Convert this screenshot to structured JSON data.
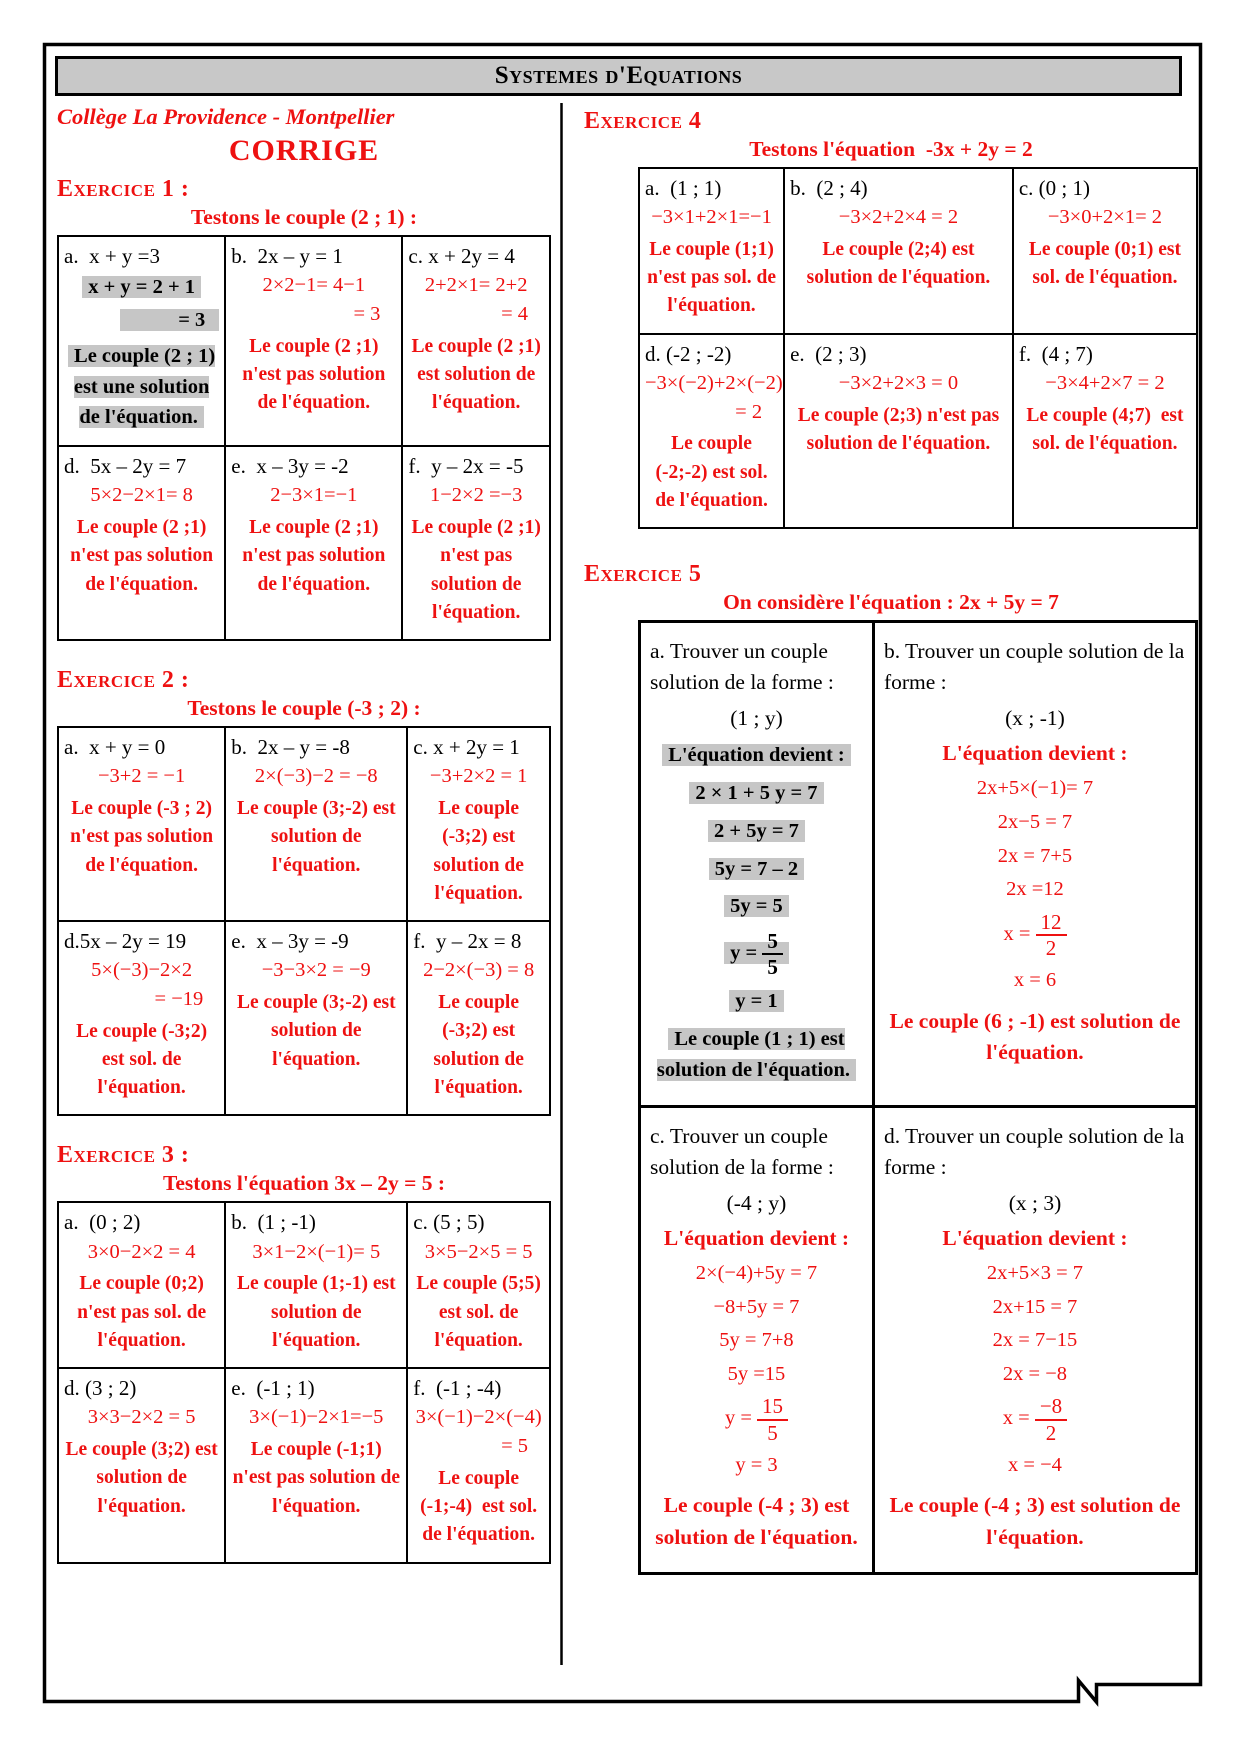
{
  "header": {
    "title": "Systemes d'Equations"
  },
  "left": {
    "school": "Collège La Providence - Montpellier",
    "corrige": "CORRIGE",
    "ex1": {
      "title": "Exercice 1 :",
      "subtitle": "Testons le couple (2 ; 1) :",
      "cells": [
        {
          "id": "a",
          "lines": [
            {
              "t": "a.  x + y =3",
              "c": "k"
            },
            {
              "t": "x + y = 2 + 1",
              "c": "hl"
            },
            {
              "t": "= 3",
              "c": "hlr"
            },
            {
              "t": "Le couple (2 ; 1) est une solution de l'équation.",
              "c": "hl cc"
            }
          ]
        },
        {
          "id": "b",
          "lines": [
            {
              "t": "b.  2x – y = 1",
              "c": "k"
            },
            {
              "t": "2×2−1= 4−1",
              "c": "m"
            },
            {
              "t": "= 3",
              "c": "mr"
            },
            {
              "t": "Le couple (2 ;1) n'est pas solution de l'équation.",
              "c": "mc"
            }
          ]
        },
        {
          "id": "c",
          "lines": [
            {
              "t": "c. x + 2y = 4",
              "c": "k"
            },
            {
              "t": "2+2×1= 2+2",
              "c": "m"
            },
            {
              "t": "= 4",
              "c": "mr"
            },
            {
              "t": "Le couple (2 ;1) est solution de l'équation.",
              "c": "mc"
            }
          ]
        },
        {
          "id": "d",
          "lines": [
            {
              "t": "d.  5x – 2y = 7",
              "c": "k"
            },
            {
              "t": "5×2−2×1= 8",
              "c": "m"
            },
            {
              "t": "Le couple (2 ;1) n'est pas solution de l'équation.",
              "c": "mc"
            }
          ]
        },
        {
          "id": "e",
          "lines": [
            {
              "t": "e.  x – 3y = -2",
              "c": "k"
            },
            {
              "t": "2−3×1=−1",
              "c": "m"
            },
            {
              "t": "Le couple (2 ;1) n'est pas solution de l'équation.",
              "c": "mc"
            }
          ]
        },
        {
          "id": "f",
          "lines": [
            {
              "t": "f.  y – 2x = -5",
              "c": "k"
            },
            {
              "t": "1−2×2 =−3",
              "c": "m"
            },
            {
              "t": "Le couple (2 ;1) n'est pas solution de l'équation.",
              "c": "mc"
            }
          ]
        }
      ]
    },
    "ex2": {
      "title": "Exercice 2 :",
      "subtitle": "Testons le couple  (-3 ; 2) :",
      "cells": [
        {
          "id": "a",
          "lines": [
            {
              "t": "a.  x + y = 0",
              "c": "k"
            },
            {
              "t": "−3+2 = −1",
              "c": "m"
            },
            {
              "t": "Le couple (-3 ; 2) n'est pas solution de l'équation.",
              "c": "mc"
            }
          ]
        },
        {
          "id": "b",
          "lines": [
            {
              "t": "b.  2x – y = -8",
              "c": "k"
            },
            {
              "t": "2×(−3)−2 = −8",
              "c": "m"
            },
            {
              "t": "Le couple (3;-2) est solution de l'équation.",
              "c": "mc"
            }
          ]
        },
        {
          "id": "c",
          "lines": [
            {
              "t": "c. x + 2y = 1",
              "c": "k"
            },
            {
              "t": "−3+2×2 = 1",
              "c": "m"
            },
            {
              "t": "Le couple (-3;2) est solution de l'équation.",
              "c": "mc"
            }
          ]
        },
        {
          "id": "d",
          "lines": [
            {
              "t": "d.5x – 2y = 19",
              "c": "k"
            },
            {
              "t": "5×(−3)−2×2",
              "c": "m"
            },
            {
              "t": "= −19",
              "c": "mr"
            },
            {
              "t": "Le couple (-3;2) est sol. de l'équation.",
              "c": "mc"
            }
          ]
        },
        {
          "id": "e",
          "lines": [
            {
              "t": "e.  x – 3y = -9",
              "c": "k"
            },
            {
              "t": "−3−3×2 = −9",
              "c": "m"
            },
            {
              "t": "Le couple (3;-2) est solution de l'équation.",
              "c": "mc"
            }
          ]
        },
        {
          "id": "f",
          "lines": [
            {
              "t": "f.  y – 2x = 8",
              "c": "k"
            },
            {
              "t": "2−2×(−3) = 8",
              "c": "m"
            },
            {
              "t": "Le couple (-3;2) est solution de l'équation.",
              "c": "mc"
            }
          ]
        }
      ]
    },
    "ex3": {
      "title": "Exercice 3 :",
      "subtitle": "Testons l'équation 3x – 2y = 5 :",
      "cells": [
        {
          "id": "a",
          "lines": [
            {
              "t": "a.  (0 ; 2)",
              "c": "k"
            },
            {
              "t": "3×0−2×2 = 4",
              "c": "m"
            },
            {
              "t": "Le couple (0;2) n'est pas sol. de l'équation.",
              "c": "mc"
            }
          ]
        },
        {
          "id": "b",
          "lines": [
            {
              "t": "b.  (1 ; -1)",
              "c": "k"
            },
            {
              "t": "3×1−2×(−1)= 5",
              "c": "m"
            },
            {
              "t": "Le couple (1;-1) est solution de l'équation.",
              "c": "mc"
            }
          ]
        },
        {
          "id": "c",
          "lines": [
            {
              "t": "c. (5 ; 5)",
              "c": "k"
            },
            {
              "t": "3×5−2×5 = 5",
              "c": "m"
            },
            {
              "t": "Le couple (5;5) est sol. de l'équation.",
              "c": "mc"
            }
          ]
        },
        {
          "id": "d",
          "lines": [
            {
              "t": "d. (3 ; 2)",
              "c": "k"
            },
            {
              "t": "3×3−2×2 = 5",
              "c": "m"
            },
            {
              "t": "Le couple (3;2) est solution de l'équation.",
              "c": "mc"
            }
          ]
        },
        {
          "id": "e",
          "lines": [
            {
              "t": "e.  (-1 ; 1)",
              "c": "k"
            },
            {
              "t": "3×(−1)−2×1=−5",
              "c": "m"
            },
            {
              "t": "Le couple (-1;1) n'est pas solution de l'équation.",
              "c": "mc"
            }
          ]
        },
        {
          "id": "f",
          "lines": [
            {
              "t": "f.  (-1 ; -4)",
              "c": "k"
            },
            {
              "t": "3×(−1)−2×(−4)",
              "c": "m"
            },
            {
              "t": "= 5",
              "c": "mr"
            },
            {
              "t": "Le couple (-1;-4)  est sol. de l'équation.",
              "c": "mc"
            }
          ]
        }
      ]
    }
  },
  "right": {
    "ex4": {
      "title": "Exercice 4",
      "subtitle": "Testons l'équation  -3x + 2y = 2",
      "cells": [
        {
          "id": "a",
          "lines": [
            {
              "t": "a.  (1 ; 1)",
              "c": "k"
            },
            {
              "t": "−3×1+2×1=−1",
              "c": "m"
            },
            {
              "t": "Le couple (1;1) n'est pas sol. de l'équation.",
              "c": "mc"
            }
          ]
        },
        {
          "id": "b",
          "lines": [
            {
              "t": "b.  (2 ; 4)",
              "c": "k"
            },
            {
              "t": "−3×2+2×4 = 2",
              "c": "m"
            },
            {
              "t": "Le couple (2;4) est solution de l'équation.",
              "c": "mc"
            }
          ]
        },
        {
          "id": "c",
          "lines": [
            {
              "t": "c. (0 ; 1)",
              "c": "k"
            },
            {
              "t": "−3×0+2×1= 2",
              "c": "m"
            },
            {
              "t": "Le couple (0;1) est sol. de l'équation.",
              "c": "mc"
            }
          ]
        },
        {
          "id": "d",
          "lines": [
            {
              "t": "d. (-2 ; -2)",
              "c": "k"
            },
            {
              "t": "−3×(−2)+2×(−2)",
              "c": "m"
            },
            {
              "t": "= 2",
              "c": "mr"
            },
            {
              "t": "Le couple (-2;-2) est sol. de l'équation.",
              "c": "mc"
            }
          ]
        },
        {
          "id": "e",
          "lines": [
            {
              "t": "e.  (2 ; 3)",
              "c": "k"
            },
            {
              "t": "−3×2+2×3 = 0",
              "c": "m"
            },
            {
              "t": "Le couple (2;3) n'est pas solution de l'équation.",
              "c": "mc"
            }
          ]
        },
        {
          "id": "f",
          "lines": [
            {
              "t": "f.  (4 ; 7)",
              "c": "k"
            },
            {
              "t": "−3×4+2×7 = 2",
              "c": "m"
            },
            {
              "t": "Le couple (4;7)  est sol. de l'équation.",
              "c": "mc"
            }
          ]
        }
      ]
    },
    "ex5": {
      "title": "Exercice 5",
      "subtitle": "On considère l'équation : 2x + 5y = 7",
      "cells": [
        {
          "id": "a",
          "lines": [
            {
              "t": "a. Trouver un couple solution de la forme :",
              "c": "i"
            },
            {
              "t": "(1 ; y)",
              "c": "f"
            },
            {
              "t": "L'équation devient :",
              "c": "hl"
            },
            {
              "t": "2 × 1 + 5 y = 7",
              "c": "hl"
            },
            {
              "t": "2 + 5y = 7",
              "c": "hl"
            },
            {
              "t": "5y = 7 – 2",
              "c": "hl"
            },
            {
              "t": "5y = 5",
              "c": "hl"
            },
            {
              "fr": {
                "pre": "y = ",
                "num": "5",
                "den": "5"
              },
              "c": "hl"
            },
            {
              "t": "y = 1",
              "c": "hl"
            },
            {
              "t": "Le couple (1 ; 1) est solution de l'équation.",
              "c": "hl mt"
            }
          ]
        },
        {
          "id": "b",
          "lines": [
            {
              "t": "b. Trouver un couple solution de la forme :",
              "c": "i"
            },
            {
              "t": "(x ; -1)",
              "c": "f"
            },
            {
              "t": "L'équation devient :",
              "c": "rb"
            },
            {
              "t": "2x+5×(−1)= 7",
              "c": "m"
            },
            {
              "t": "2x−5 = 7",
              "c": "m"
            },
            {
              "t": "2x = 7+5",
              "c": "m"
            },
            {
              "t": "2x =12",
              "c": "m"
            },
            {
              "fr": {
                "pre": "x = ",
                "num": "12",
                "den": "2"
              },
              "c": "m"
            },
            {
              "t": "x = 6",
              "c": "m"
            },
            {
              "t": "Le couple (6 ; -1) est solution de l'équation.",
              "c": "mc big"
            }
          ]
        },
        {
          "id": "c",
          "lines": [
            {
              "t": "c. Trouver un couple solution de la forme :",
              "c": "i"
            },
            {
              "t": "(-4 ; y)",
              "c": "f"
            },
            {
              "t": "L'équation devient :",
              "c": "rb"
            },
            {
              "t": "2×(−4)+5y = 7",
              "c": "m"
            },
            {
              "t": "−8+5y = 7",
              "c": "m"
            },
            {
              "t": "5y = 7+8",
              "c": "m"
            },
            {
              "t": "5y =15",
              "c": "m"
            },
            {
              "fr": {
                "pre": "y = ",
                "num": "15",
                "den": "5"
              },
              "c": "m"
            },
            {
              "t": "y = 3",
              "c": "m"
            },
            {
              "t": "Le couple (-4 ; 3) est solution de l'équation.",
              "c": "mc big"
            }
          ]
        },
        {
          "id": "d",
          "lines": [
            {
              "t": "d. Trouver un couple solution de la forme :",
              "c": "i"
            },
            {
              "t": "(x ; 3)",
              "c": "f"
            },
            {
              "t": "L'équation devient :",
              "c": "rb"
            },
            {
              "t": "2x+5×3 = 7",
              "c": "m"
            },
            {
              "t": "2x+15 = 7",
              "c": "m"
            },
            {
              "t": "2x = 7−15",
              "c": "m"
            },
            {
              "t": "2x = −8",
              "c": "m"
            },
            {
              "fr": {
                "pre": "x = ",
                "num": "−8",
                "den": "2"
              },
              "c": "m"
            },
            {
              "t": "x = −4",
              "c": "m"
            },
            {
              "t": "Le couple (-4 ; 3) est solution de l'équation.",
              "c": "mc big"
            }
          ]
        }
      ]
    }
  }
}
